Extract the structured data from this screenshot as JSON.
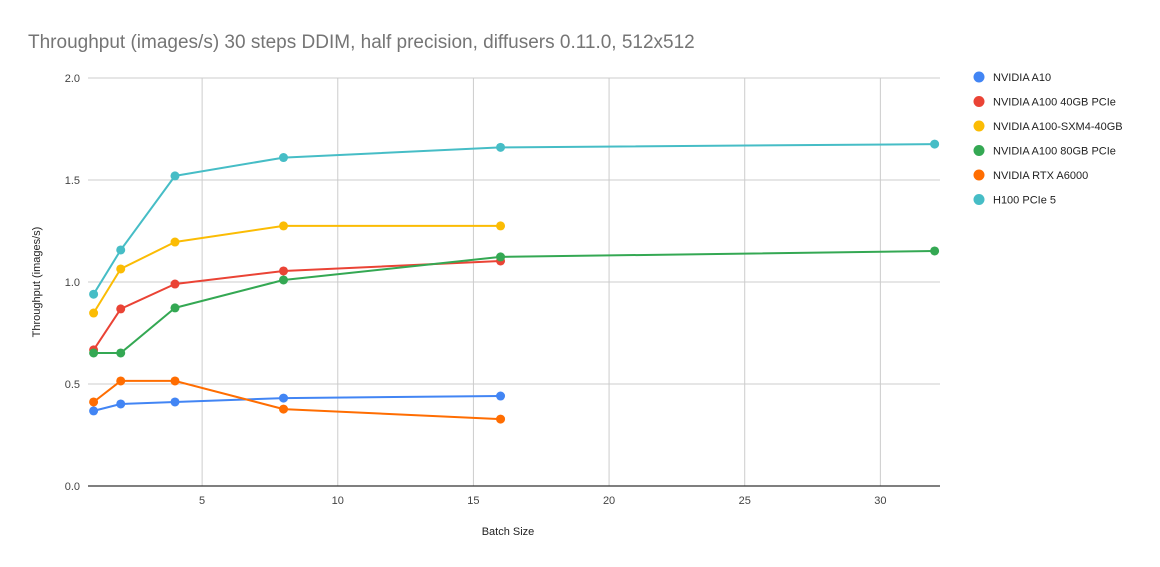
{
  "chart_data": {
    "type": "line",
    "title": "Throughput (images/s) 30 steps DDIM, half precision, diffusers 0.11.0, 512x512",
    "xlabel": "Batch Size",
    "ylabel": "Throughput (images/s)",
    "xlim": [
      1,
      32
    ],
    "ylim": [
      0,
      2
    ],
    "xticks": [
      5,
      10,
      15,
      20,
      25,
      30
    ],
    "yticks": [
      0,
      0.5,
      1,
      1.5,
      2
    ],
    "ytick_labels": [
      "0.0",
      "0.5",
      "1.0",
      "1.5",
      "2.0"
    ],
    "grid": true,
    "legend_position": "right",
    "series": [
      {
        "name": "NVIDIA A10",
        "color": "#4285f4",
        "x": [
          1,
          2,
          4,
          8,
          16
        ],
        "y": [
          0.368,
          0.402,
          0.412,
          0.431,
          0.441
        ]
      },
      {
        "name": "NVIDIA A100 40GB PCIe",
        "color": "#ea4335",
        "x": [
          1,
          2,
          4,
          8,
          16
        ],
        "y": [
          0.667,
          0.868,
          0.99,
          1.054,
          1.103
        ]
      },
      {
        "name": "NVIDIA A100-SXM4-40GB",
        "color": "#fbbc04",
        "x": [
          1,
          2,
          4,
          8,
          16
        ],
        "y": [
          0.848,
          1.064,
          1.196,
          1.275,
          1.275
        ]
      },
      {
        "name": "NVIDIA A100 80GB PCIe",
        "color": "#34a853",
        "x": [
          1,
          2,
          4,
          8,
          16,
          32
        ],
        "y": [
          0.652,
          0.652,
          0.873,
          1.01,
          1.123,
          1.152
        ]
      },
      {
        "name": "NVIDIA RTX A6000",
        "color": "#ff6d01",
        "x": [
          1,
          2,
          4,
          8,
          16
        ],
        "y": [
          0.412,
          0.515,
          0.515,
          0.377,
          0.328
        ]
      },
      {
        "name": "H100 PCIe 5",
        "color": "#46bdc6",
        "x": [
          1,
          2,
          4,
          8,
          16,
          32
        ],
        "y": [
          0.94,
          1.157,
          1.52,
          1.61,
          1.66,
          1.676
        ]
      }
    ]
  }
}
